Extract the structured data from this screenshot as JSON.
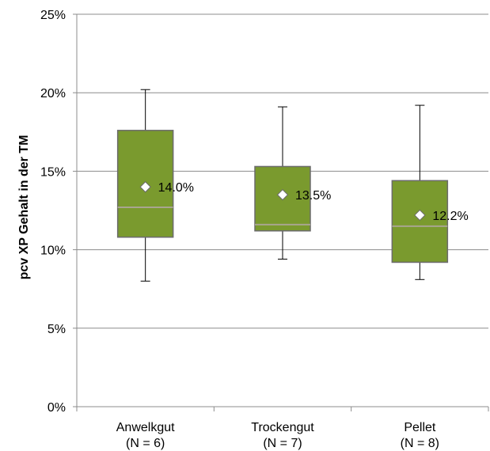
{
  "chart_data": {
    "type": "boxplot",
    "ylabel": "pcv XP Gehalt in der TM",
    "ylim": [
      0,
      25
    ],
    "yticks": [
      "0%",
      "5%",
      "10%",
      "15%",
      "20%",
      "25%"
    ],
    "grid": true,
    "categories": [
      {
        "name": "Anwelkgut",
        "n_label": "(N = 6)"
      },
      {
        "name": "Trockengut",
        "n_label": "(N = 7)"
      },
      {
        "name": "Pellet",
        "n_label": "(N = 8)"
      }
    ],
    "boxes": [
      {
        "min": 8.0,
        "q1": 10.8,
        "median": 12.7,
        "q3": 17.6,
        "max": 20.2,
        "mean": 14.0,
        "mean_label": "14.0%"
      },
      {
        "min": 9.4,
        "q1": 11.2,
        "median": 11.6,
        "q3": 15.3,
        "max": 19.1,
        "mean": 13.5,
        "mean_label": "13.5%"
      },
      {
        "min": 8.1,
        "q1": 9.2,
        "median": 11.5,
        "q3": 14.4,
        "max": 19.2,
        "mean": 12.2,
        "mean_label": "12.2%"
      }
    ],
    "colors": {
      "box_fill": "#7a9a2e",
      "box_stroke": "#6b6b6b",
      "median": "#a8a58f",
      "grid": "#8c8c8c",
      "whisker": "#000000"
    }
  }
}
